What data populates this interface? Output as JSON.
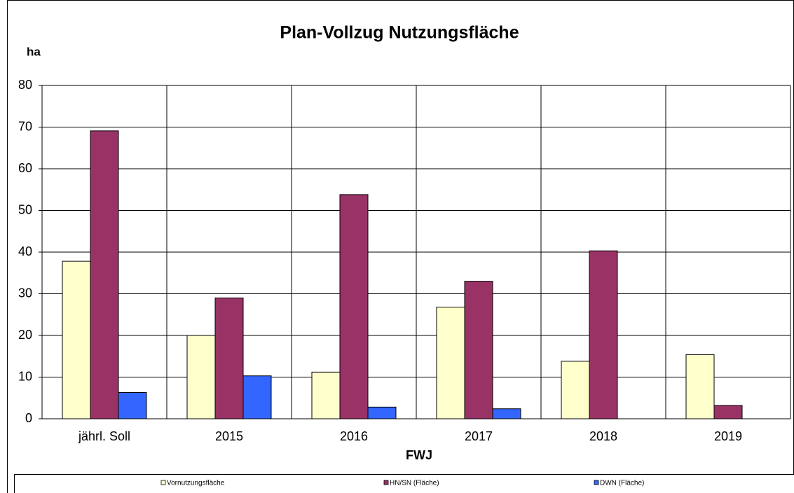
{
  "chart_data": {
    "type": "bar",
    "title": "Plan-Vollzug Nutzungsfläche",
    "y_label": "ha",
    "x_label": "FWJ",
    "categories": [
      "jährl. Soll",
      "2015",
      "2016",
      "2017",
      "2018",
      "2019"
    ],
    "series": [
      {
        "name": "Vornutzungsfläche",
        "color": "#ffffcc",
        "values": [
          37.8,
          20,
          11.2,
          26.8,
          13.8,
          15.4
        ]
      },
      {
        "name": "HN/SN (Fläche)",
        "color": "#993366",
        "values": [
          69.1,
          29,
          53.8,
          33,
          40.3,
          3.2
        ]
      },
      {
        "name": "DWN (Fläche)",
        "color": "#3366ff",
        "values": [
          6.3,
          10.3,
          2.8,
          2.4,
          0,
          0
        ]
      }
    ],
    "ylim": [
      0,
      80
    ],
    "yticks": [
      0,
      10,
      20,
      30,
      40,
      50,
      60,
      70,
      80
    ],
    "grid": true,
    "legend": "bottom"
  }
}
